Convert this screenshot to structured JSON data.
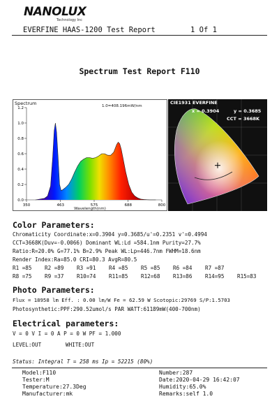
{
  "logo": {
    "brand": "NANOLUX",
    "tagline": "Technology Inc"
  },
  "header": {
    "report": "EVERFINE HAAS-1200 Test Report",
    "page": "1 Of 1"
  },
  "title": "Spectrum Test Report F110",
  "colors": {
    "ink": "#111111"
  },
  "chart_data": [
    {
      "type": "area",
      "title": "Spectrum",
      "peak_label": "1.0=408.196mW/nm",
      "xlabel": "Wavelength(nm)",
      "ylabel": "",
      "xlim": [
        350,
        800
      ],
      "ylim": [
        0,
        1.2
      ],
      "x_ticks": [
        "350",
        "463",
        "575",
        "688",
        "800"
      ],
      "y_ticks": [
        "0.0",
        "0.2",
        "0.4",
        "0.6",
        "0.8",
        "1.0",
        "1.2"
      ],
      "series": [
        {
          "x": [
            380,
            410,
            420,
            430,
            437,
            442,
            446,
            450,
            455,
            460,
            465,
            470,
            480,
            490,
            500,
            510,
            520,
            530,
            540,
            550,
            560,
            570,
            580,
            590,
            600,
            610,
            620,
            630,
            640,
            650,
            655,
            660,
            665,
            670,
            680,
            690,
            700,
            710,
            720,
            730,
            740,
            760,
            780
          ],
          "values": [
            0,
            0.02,
            0.05,
            0.18,
            0.55,
            0.9,
            1.0,
            0.88,
            0.55,
            0.2,
            0.12,
            0.13,
            0.16,
            0.2,
            0.27,
            0.36,
            0.44,
            0.5,
            0.53,
            0.55,
            0.55,
            0.54,
            0.55,
            0.57,
            0.6,
            0.6,
            0.58,
            0.58,
            0.62,
            0.72,
            0.75,
            0.73,
            0.66,
            0.56,
            0.36,
            0.2,
            0.1,
            0.05,
            0.025,
            0.01,
            0.005,
            0,
            0
          ]
        }
      ]
    },
    {
      "type": "scatter",
      "title": "CIE1931 EVERFINE",
      "annotations": [
        "x = 0.3904",
        "y = 0.3685",
        "CCT = 3668K"
      ],
      "x": [
        0.3904
      ],
      "y": [
        0.3685
      ]
    }
  ],
  "color_params": {
    "heading": "Color Parameters:",
    "line1": "Chromaticity Coordinate:x=0.3904  y=0.3685/u'=0.2351 v'=0.4994",
    "line2": "CCT=3668K(Duv=-0.0066) Dominant WL:Ld =584.1nm Purity=27.7%",
    "line3": "Ratio:R=20.0% G=77.1% B=2.9%  Peak WL:Lp=446.7nm  FWHM=18.6nm",
    "line4": "Render Index:Ra=85.0  CRI=80.3  AvgR=80.5",
    "row1": [
      "R1 =85",
      "R2 =89",
      "R3 =91",
      "R4 =85",
      "R5 =85",
      "R6 =84",
      "R7 =87"
    ],
    "row2": [
      "R8 =75",
      "R9 =37",
      "R10=74",
      "R11=85",
      "R12=68",
      "R13=86",
      "R14=95",
      "R15=83"
    ]
  },
  "photo_params": {
    "heading": "Photo Parameters:",
    "line1": "Flux  = 18958 lm   Eff. : 0.00 lm/W  Fe  = 62.59 W Scotopic:29769 S/P:1.5703",
    "line2": "Photosynthetic:PPF:290.52umol/s PAR WATT:61189mW(400-700nm)"
  },
  "electrical": {
    "heading": "Electrical parameters:",
    "line1": "V = 0 V     I = 0 A    P = 0 W PF = 1.000",
    "level": "LEVEL:OUT",
    "white": "WHITE:OUT"
  },
  "status": "Status:  Integral T = 258 ms  Ip = 52215 (80%)",
  "footer": {
    "model": "Model:F110",
    "tester": "Tester:M",
    "temperature": "Temperature:27.3Deg",
    "manufacturer": "Manufacturer:mk",
    "number": "Number:287",
    "date": "Date:2020-04-29 16:42:07",
    "humidity": "Humidity:65.0%",
    "remarks": "Remarks:self 1.0"
  }
}
